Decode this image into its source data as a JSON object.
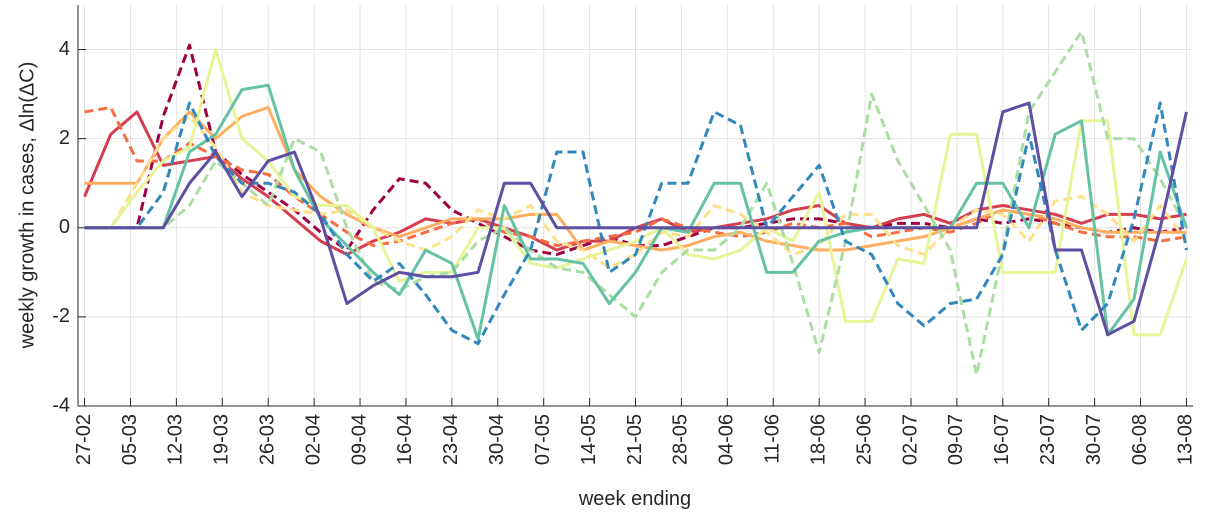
{
  "chart_data": {
    "type": "line",
    "x_label": "week ending",
    "y_label": "weekly growth in cases, Δln(ΔC)",
    "xlim": [
      -1,
      169
    ],
    "ylim": [
      -4,
      5
    ],
    "xticks": [
      {
        "value": 0,
        "label": "27-02"
      },
      {
        "value": 7,
        "label": "05-03"
      },
      {
        "value": 14,
        "label": "12-03"
      },
      {
        "value": 21,
        "label": "19-03"
      },
      {
        "value": 28,
        "label": "26-03"
      },
      {
        "value": 35,
        "label": "02-04"
      },
      {
        "value": 42,
        "label": "09-04"
      },
      {
        "value": 49,
        "label": "16-04"
      },
      {
        "value": 56,
        "label": "23-04"
      },
      {
        "value": 63,
        "label": "30-04"
      },
      {
        "value": 70,
        "label": "07-05"
      },
      {
        "value": 77,
        "label": "14-05"
      },
      {
        "value": 84,
        "label": "21-05"
      },
      {
        "value": 91,
        "label": "28-05"
      },
      {
        "value": 98,
        "label": "04-06"
      },
      {
        "value": 105,
        "label": "11-06"
      },
      {
        "value": 112,
        "label": "18-06"
      },
      {
        "value": 119,
        "label": "25-06"
      },
      {
        "value": 126,
        "label": "02-07"
      },
      {
        "value": 133,
        "label": "09-07"
      },
      {
        "value": 140,
        "label": "16-07"
      },
      {
        "value": 147,
        "label": "23-07"
      },
      {
        "value": 154,
        "label": "30-07"
      },
      {
        "value": 161,
        "label": "06-08"
      },
      {
        "value": 168,
        "label": "13-08"
      }
    ],
    "yticks": [
      -4,
      -2,
      0,
      2,
      4
    ],
    "grid": true,
    "x": [
      0,
      4,
      8,
      12,
      16,
      20,
      24,
      28,
      32,
      36,
      40,
      44,
      48,
      52,
      56,
      60,
      64,
      68,
      72,
      76,
      80,
      84,
      88,
      92,
      96,
      100,
      104,
      108,
      112,
      116,
      120,
      124,
      128,
      132,
      136,
      140,
      144,
      148,
      152,
      156,
      160,
      164,
      168
    ],
    "series": [
      {
        "color": "#9e0142",
        "style": "dashed",
        "values": [
          0,
          0,
          0,
          2.5,
          4.1,
          1.7,
          1.2,
          0.8,
          0.4,
          -0.1,
          -0.5,
          0.4,
          1.1,
          1,
          0.4,
          0.1,
          -0.2,
          -0.5,
          -0.6,
          -0.4,
          -0.2,
          -0.4,
          -0.4,
          -0.2,
          0,
          0,
          0.1,
          0.2,
          0.2,
          0.1,
          0,
          0.1,
          0.1,
          0,
          0.2,
          0.1,
          0.2,
          0.1,
          0,
          -0.1,
          0,
          -0.1,
          0
        ]
      },
      {
        "color": "#d53e4f",
        "style": "solid",
        "values": [
          0.7,
          2.1,
          2.6,
          1.4,
          1.5,
          1.6,
          1.1,
          0.7,
          0.2,
          -0.3,
          -0.6,
          -0.3,
          -0.1,
          0.2,
          0.1,
          0.2,
          0,
          -0.2,
          -0.5,
          -0.3,
          -0.3,
          0,
          0.2,
          -0.1,
          0,
          0.1,
          0.2,
          0.4,
          0.5,
          0.1,
          0,
          0.2,
          0.3,
          0.1,
          0.4,
          0.5,
          0.4,
          0.3,
          0.1,
          0.3,
          0.3,
          0.2,
          0.3
        ]
      },
      {
        "color": "#f46d43",
        "style": "dashed",
        "values": [
          2.6,
          2.7,
          1.5,
          1.5,
          1.9,
          1.6,
          1.3,
          1.2,
          0.7,
          0.3,
          -0.1,
          -0.4,
          -0.3,
          -0.1,
          0.1,
          0.2,
          -0.1,
          -0.2,
          -0.4,
          -0.3,
          -0.2,
          -0.1,
          0.2,
          0,
          -0.1,
          -0.2,
          -0.1,
          0.1,
          0,
          0.1,
          -0.2,
          -0.1,
          0,
          -0.1,
          0.1,
          0.4,
          0.3,
          0.1,
          -0.1,
          -0.2,
          -0.2,
          -0.3,
          -0.2
        ]
      },
      {
        "color": "#fdae61",
        "style": "solid",
        "values": [
          1,
          1,
          1,
          2,
          2.6,
          2,
          2.5,
          2.7,
          1.3,
          0.7,
          0.3,
          0,
          -0.2,
          0,
          0.2,
          0.2,
          0.2,
          0.3,
          0.3,
          -0.5,
          -0.3,
          -0.4,
          -0.5,
          -0.4,
          -0.2,
          -0.1,
          -0.3,
          -0.4,
          -0.5,
          -0.5,
          -0.4,
          -0.3,
          -0.2,
          0,
          0.2,
          0.4,
          0.3,
          0.2,
          0,
          -0.1,
          -0.1,
          -0.1,
          -0.1
        ]
      },
      {
        "color": "#fee08b",
        "style": "dashed",
        "values": [
          0,
          0,
          1,
          2,
          2.5,
          1.8,
          0.8,
          0.5,
          0.4,
          0.3,
          0.4,
          0,
          -0.3,
          -0.5,
          -0.2,
          0.4,
          0.2,
          0.5,
          -0.3,
          -0.5,
          -0.9,
          -0.6,
          -0.1,
          -0.2,
          0.5,
          0.3,
          -0.1,
          -0.6,
          -0.4,
          0.3,
          0.3,
          -0.4,
          -0.6,
          0,
          0.4,
          0.3,
          -0.3,
          0.6,
          0.7,
          0.3,
          -0.3,
          0.5,
          -0.3
        ]
      },
      {
        "color": "#e6f598",
        "style": "solid",
        "values": [
          0,
          0,
          0.8,
          1.5,
          1.8,
          4,
          2,
          1.5,
          0.7,
          0.5,
          0.5,
          0,
          -1.2,
          -1,
          -1,
          0,
          0,
          -0.8,
          -0.9,
          -0.7,
          -0.5,
          -0.3,
          0,
          -0.6,
          -0.7,
          -0.5,
          0,
          -0.3,
          0.8,
          -2.1,
          -2.1,
          -0.7,
          -0.8,
          2.1,
          2.1,
          -1,
          -1,
          -1,
          2.4,
          2.4,
          -2.4,
          -2.4,
          -0.7
        ]
      },
      {
        "color": "#abdda4",
        "style": "dashed",
        "values": [
          0,
          0,
          0,
          0,
          0.5,
          1.5,
          1,
          0.5,
          2,
          1.7,
          0,
          -1.2,
          -1.4,
          -1.1,
          -1,
          -0.3,
          0,
          -0.5,
          -0.9,
          -1,
          -1.5,
          -2,
          -1,
          -0.5,
          -0.5,
          0,
          1,
          -0.8,
          -2.8,
          -0.3,
          3,
          1.5,
          0.5,
          -0.5,
          -3.3,
          -0.5,
          2.6,
          3.5,
          4.4,
          2,
          2,
          1.1,
          0
        ]
      },
      {
        "color": "#66c2a5",
        "style": "solid",
        "values": [
          0,
          0,
          0,
          0,
          1.7,
          2.1,
          3.1,
          3.2,
          1.3,
          0.2,
          -0.4,
          -1,
          -1.5,
          -0.5,
          -0.8,
          -2.5,
          0.5,
          -0.7,
          -0.7,
          -0.8,
          -1.7,
          -1,
          0,
          -0.1,
          1,
          1,
          -1,
          -1,
          -0.3,
          -0.1,
          0,
          0,
          0,
          0,
          1,
          1,
          0,
          2.1,
          2.4,
          -2.4,
          -1.6,
          1.7,
          0
        ]
      },
      {
        "color": "#3288bd",
        "style": "dashed",
        "values": [
          0,
          0,
          0,
          0.8,
          2.8,
          1.6,
          1,
          1,
          0.8,
          0.3,
          -0.6,
          -1.2,
          -0.8,
          -1.5,
          -2.3,
          -2.6,
          -1.5,
          -0.5,
          1.7,
          1.7,
          -1,
          -0.6,
          1,
          1,
          2.6,
          2.3,
          0,
          0.7,
          1.4,
          -0.3,
          -0.6,
          -1.7,
          -2.2,
          -1.7,
          -1.6,
          -0.6,
          2.1,
          -0.5,
          -2.3,
          -1.7,
          0.2,
          2.8,
          -0.5
        ]
      },
      {
        "color": "#5e4fa2",
        "style": "solid",
        "values": [
          0,
          0,
          0,
          0,
          1,
          1.7,
          0.7,
          1.5,
          1.7,
          0.2,
          -1.7,
          -1.3,
          -1,
          -1.1,
          -1.1,
          -1,
          1,
          1,
          0,
          0,
          0,
          0,
          0,
          0,
          0,
          0,
          0,
          0,
          0,
          0,
          0,
          0,
          0,
          0,
          0,
          2.6,
          2.8,
          -0.5,
          -0.5,
          -2.4,
          -2.1,
          0,
          2.6
        ]
      }
    ]
  }
}
